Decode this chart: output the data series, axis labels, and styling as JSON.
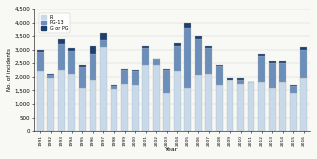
{
  "years": [
    1991,
    1992,
    1993,
    1994,
    1995,
    1996,
    1997,
    1998,
    1999,
    2000,
    2001,
    2002,
    2003,
    2004,
    2005,
    2006,
    2007,
    2008,
    2009,
    2010,
    2011,
    2012,
    2013,
    2014,
    2015,
    2016
  ],
  "R": [
    2200,
    1950,
    2250,
    2100,
    1600,
    1900,
    3100,
    1550,
    1750,
    1700,
    2450,
    2450,
    1400,
    2200,
    1600,
    2050,
    2100,
    1700,
    1900,
    1750,
    1800,
    1800,
    1600,
    1800,
    1400,
    1950
  ],
  "PG13": [
    700,
    100,
    950,
    850,
    750,
    950,
    250,
    100,
    500,
    500,
    600,
    200,
    850,
    950,
    2200,
    1350,
    950,
    700,
    0,
    150,
    0,
    950,
    900,
    700,
    250,
    1050
  ],
  "GorPG": [
    100,
    50,
    200,
    100,
    100,
    300,
    250,
    50,
    50,
    50,
    100,
    0,
    50,
    100,
    200,
    100,
    100,
    50,
    50,
    50,
    0,
    100,
    100,
    100,
    50,
    100
  ],
  "color_R": "#c8d9ea",
  "color_PG13": "#6b8fba",
  "color_GorPG": "#1e3f6e",
  "ylabel": "No. of incidents",
  "xlabel": "Year",
  "ylim": [
    0,
    4500
  ],
  "yticks": [
    0,
    500,
    1000,
    1500,
    2000,
    2500,
    3000,
    3500,
    4000,
    4500
  ],
  "legend_labels": [
    "R",
    "PG-13",
    "G or PG"
  ],
  "bg_color": "#f8f8f5"
}
